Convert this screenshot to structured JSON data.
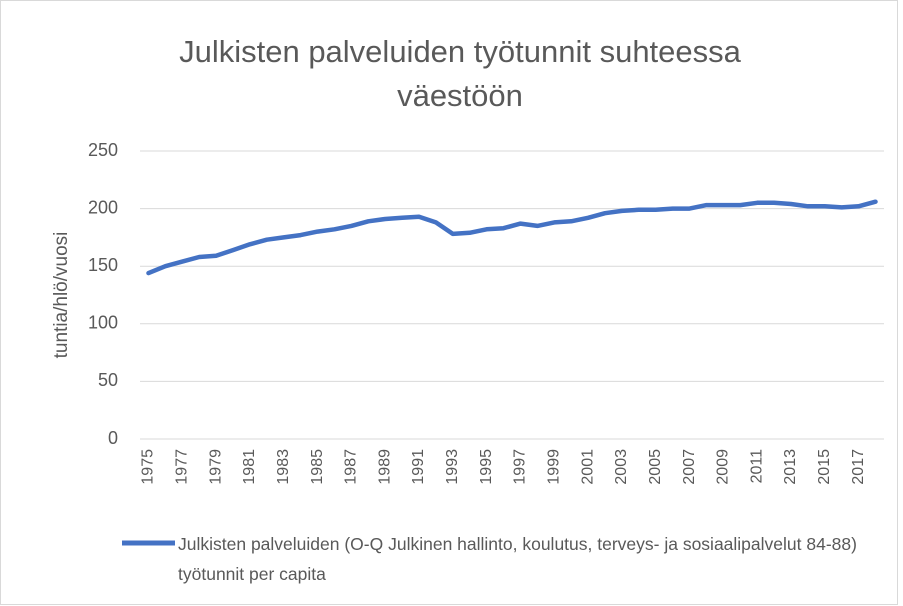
{
  "chart_data": {
    "type": "line",
    "title": "Julkisten palveluiden työtunnit suhteessa väestöön",
    "y_label": "tuntia/hlö/vuosi",
    "categories": [
      "1975",
      null,
      "1977",
      null,
      "1979",
      null,
      "1981",
      null,
      "1983",
      null,
      "1985",
      null,
      "1987",
      null,
      "1989",
      null,
      "1991",
      null,
      "1993",
      null,
      "1995",
      null,
      "1997",
      null,
      "1999",
      null,
      "2001",
      null,
      "2003",
      null,
      "2005",
      null,
      "2007",
      null,
      "2009",
      null,
      "2011",
      null,
      "2013",
      null,
      "2015",
      null,
      "2017",
      null
    ],
    "series": [
      {
        "name": "Julkisten palveluiden (O-Q Julkinen hallinto, koulutus, terveys- ja sosiaalipalvelut 84-88) työtunnit per capita",
        "color": "#4472c4",
        "values": [
          144,
          150,
          154,
          158,
          159,
          164,
          169,
          173,
          175,
          177,
          180,
          182,
          185,
          189,
          191,
          192,
          193,
          188,
          178,
          179,
          182,
          183,
          187,
          185,
          188,
          189,
          192,
          196,
          198,
          199,
          199,
          200,
          200,
          203,
          203,
          203,
          205,
          205,
          204,
          202,
          202,
          201,
          202,
          206
        ]
      }
    ],
    "ylim": [
      0,
      250
    ],
    "yticks": [
      0,
      50,
      100,
      150,
      200,
      250
    ],
    "grid": true,
    "legend": "bottom"
  }
}
